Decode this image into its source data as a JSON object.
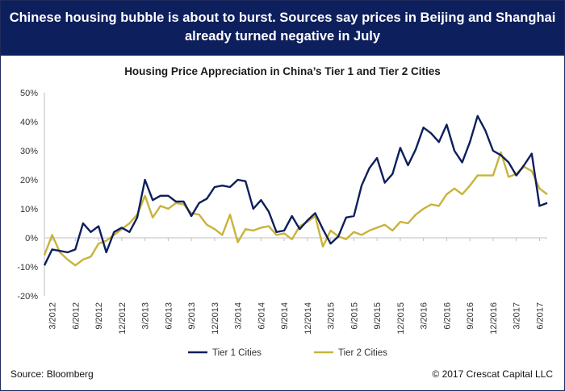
{
  "header": {
    "line1": "Chinese housing bubble is about to burst. Sources say prices in Beijing and Shanghai",
    "line2": "already turned negative in July"
  },
  "footer": {
    "source": "Source: Bloomberg",
    "copyright": "© 2017 Crescat Capital LLC"
  },
  "colors": {
    "header_bg": "#0d1f5c",
    "tier1": "#0d1f5c",
    "tier2": "#c9b33a"
  },
  "chart_data": {
    "type": "line",
    "title": "Housing Price Appreciation in China’s Tier 1 and Tier 2 Cities",
    "xlabel": "",
    "ylabel": "",
    "ylim": [
      -20,
      50
    ],
    "y_ticks": [
      "50%",
      "40%",
      "30%",
      "20%",
      "10%",
      "0%",
      "-10%",
      "-20%"
    ],
    "y_tick_values": [
      50,
      40,
      30,
      20,
      10,
      0,
      -10,
      -20
    ],
    "x_tick_labels": [
      "3/2012",
      "6/2012",
      "9/2012",
      "12/2012",
      "3/2013",
      "6/2013",
      "9/2013",
      "12/2013",
      "3/2014",
      "6/2014",
      "9/2014",
      "12/2014",
      "3/2015",
      "6/2015",
      "9/2015",
      "12/2015",
      "3/2016",
      "6/2016",
      "9/2016",
      "12/2016",
      "3/2017",
      "6/2017"
    ],
    "x_start": "2/2012",
    "x_end": "7/2017",
    "grid": false,
    "legend_position": "bottom",
    "series": [
      {
        "name": "Tier 1 Cities",
        "values": [
          -9.5,
          -4,
          -4.5,
          -5,
          -4,
          5,
          2,
          4,
          -5,
          2,
          3.5,
          2,
          7,
          20,
          13,
          14.5,
          14.5,
          12.5,
          12.5,
          7.5,
          12,
          13.5,
          17.5,
          18,
          17.5,
          20,
          19.5,
          10,
          13,
          9,
          2,
          2.5,
          7.5,
          3,
          6,
          8.5,
          3,
          -2,
          0.5,
          7,
          7.5,
          18,
          24,
          27.5,
          19,
          22,
          31,
          25,
          30.5,
          38,
          36,
          33,
          39,
          30,
          26,
          33,
          42,
          37,
          30,
          28.5,
          26,
          21.5,
          25,
          29,
          11,
          12
        ]
      },
      {
        "name": "Tier 2 Cities",
        "values": [
          -6,
          1,
          -5,
          -7.5,
          -9.5,
          -7.5,
          -6.5,
          -2,
          -1,
          1,
          3,
          5,
          8,
          14.5,
          7,
          11,
          10,
          12,
          11.5,
          8.5,
          8,
          4.5,
          3,
          1,
          8,
          -1.5,
          3,
          2.5,
          3.5,
          4,
          1,
          1.5,
          -0.5,
          4,
          5.5,
          7.5,
          -3,
          2.5,
          0.5,
          -0.5,
          2,
          1,
          2.5,
          3.5,
          4.5,
          2.5,
          5.5,
          5,
          8,
          10,
          11.5,
          11,
          15,
          17,
          15,
          18,
          21.5,
          21.5,
          21.5,
          29.5,
          21,
          22,
          24.5,
          23,
          17,
          15
        ]
      }
    ]
  }
}
